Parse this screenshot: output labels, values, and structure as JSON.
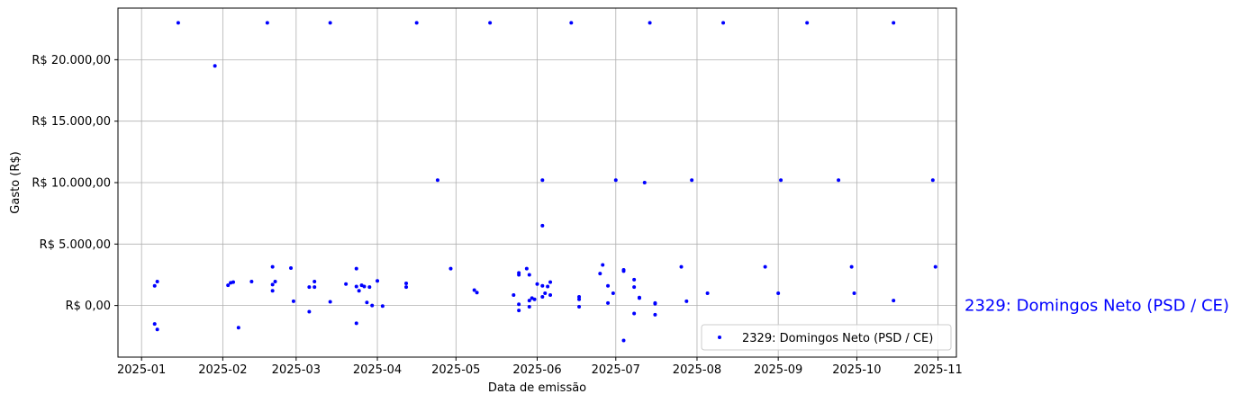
{
  "chart_data": {
    "type": "scatter",
    "title": "",
    "xlabel": "Data de emissão",
    "ylabel": "Gasto (R$)",
    "x_axis_type": "date",
    "xlim": [
      "2024-12-23",
      "2025-11-08"
    ],
    "ylim": [
      -4200,
      24200
    ],
    "x_ticks": [
      "2025-01-01",
      "2025-02-01",
      "2025-03-01",
      "2025-04-01",
      "2025-05-01",
      "2025-06-01",
      "2025-07-01",
      "2025-08-01",
      "2025-09-01",
      "2025-10-01",
      "2025-11-01"
    ],
    "x_tick_labels": [
      "2025-01",
      "2025-02",
      "2025-03",
      "2025-04",
      "2025-05",
      "2025-06",
      "2025-07",
      "2025-08",
      "2025-09",
      "2025-10",
      "2025-11"
    ],
    "y_ticks": [
      0,
      5000,
      10000,
      15000,
      20000
    ],
    "y_tick_labels": [
      "R$ 0,00",
      "R$ 5.000,00",
      "R$ 10.000,00",
      "R$ 15.000,00",
      "R$ 20.000,00"
    ],
    "grid": true,
    "legend": {
      "position": "lower right",
      "entries": [
        "2329: Domingos Neto (PSD / CE)"
      ]
    },
    "annotation": "2329: Domingos Neto (PSD / CE)",
    "series": [
      {
        "name": "2329: Domingos Neto (PSD / CE)",
        "color": "#0000ff",
        "marker": "circle",
        "points": [
          {
            "x": "2025-01-06",
            "y": 1600
          },
          {
            "x": "2025-01-07",
            "y": 1950
          },
          {
            "x": "2025-01-06",
            "y": -1500
          },
          {
            "x": "2025-01-07",
            "y": -1950
          },
          {
            "x": "2025-01-15",
            "y": 23000
          },
          {
            "x": "2025-01-29",
            "y": 19500
          },
          {
            "x": "2025-02-03",
            "y": 1650
          },
          {
            "x": "2025-02-04",
            "y": 1850
          },
          {
            "x": "2025-02-05",
            "y": 1900
          },
          {
            "x": "2025-02-07",
            "y": -1800
          },
          {
            "x": "2025-02-12",
            "y": 1950
          },
          {
            "x": "2025-02-18",
            "y": 23000
          },
          {
            "x": "2025-02-20",
            "y": 3150
          },
          {
            "x": "2025-02-20",
            "y": 1700
          },
          {
            "x": "2025-02-21",
            "y": 1950
          },
          {
            "x": "2025-02-20",
            "y": 1200
          },
          {
            "x": "2025-02-27",
            "y": 3050
          },
          {
            "x": "2025-02-28",
            "y": 350
          },
          {
            "x": "2025-03-06",
            "y": 1500
          },
          {
            "x": "2025-03-06",
            "y": -500
          },
          {
            "x": "2025-03-08",
            "y": 1950
          },
          {
            "x": "2025-03-08",
            "y": 1500
          },
          {
            "x": "2025-03-14",
            "y": 23000
          },
          {
            "x": "2025-03-14",
            "y": 300
          },
          {
            "x": "2025-03-20",
            "y": 1750
          },
          {
            "x": "2025-03-24",
            "y": 3000
          },
          {
            "x": "2025-03-24",
            "y": 1550
          },
          {
            "x": "2025-03-25",
            "y": 1200
          },
          {
            "x": "2025-03-24",
            "y": -1450
          },
          {
            "x": "2025-03-26",
            "y": 1650
          },
          {
            "x": "2025-03-27",
            "y": 1550
          },
          {
            "x": "2025-03-28",
            "y": 250
          },
          {
            "x": "2025-03-29",
            "y": 1500
          },
          {
            "x": "2025-03-30",
            "y": 0
          },
          {
            "x": "2025-04-01",
            "y": 2000
          },
          {
            "x": "2025-04-03",
            "y": -50
          },
          {
            "x": "2025-04-12",
            "y": 1800
          },
          {
            "x": "2025-04-12",
            "y": 1500
          },
          {
            "x": "2025-04-16",
            "y": 23000
          },
          {
            "x": "2025-04-24",
            "y": 10200
          },
          {
            "x": "2025-04-29",
            "y": 3000
          },
          {
            "x": "2025-05-08",
            "y": 1250
          },
          {
            "x": "2025-05-09",
            "y": 1050
          },
          {
            "x": "2025-05-14",
            "y": 23000
          },
          {
            "x": "2025-05-23",
            "y": 850
          },
          {
            "x": "2025-05-25",
            "y": 2500
          },
          {
            "x": "2025-05-25",
            "y": 2650
          },
          {
            "x": "2025-05-25",
            "y": 100
          },
          {
            "x": "2025-05-25",
            "y": -400
          },
          {
            "x": "2025-05-28",
            "y": 3000
          },
          {
            "x": "2025-05-29",
            "y": 2500
          },
          {
            "x": "2025-05-29",
            "y": 400
          },
          {
            "x": "2025-05-29",
            "y": -100
          },
          {
            "x": "2025-05-30",
            "y": 600
          },
          {
            "x": "2025-05-31",
            "y": 500
          },
          {
            "x": "2025-06-01",
            "y": 1750
          },
          {
            "x": "2025-06-03",
            "y": 10200
          },
          {
            "x": "2025-06-03",
            "y": 6500
          },
          {
            "x": "2025-06-03",
            "y": 1600
          },
          {
            "x": "2025-06-03",
            "y": 700
          },
          {
            "x": "2025-06-04",
            "y": 1000
          },
          {
            "x": "2025-06-05",
            "y": 1550
          },
          {
            "x": "2025-06-06",
            "y": 1900
          },
          {
            "x": "2025-06-06",
            "y": 850
          },
          {
            "x": "2025-06-14",
            "y": 23000
          },
          {
            "x": "2025-06-17",
            "y": 700
          },
          {
            "x": "2025-06-17",
            "y": 500
          },
          {
            "x": "2025-06-17",
            "y": -100
          },
          {
            "x": "2025-06-25",
            "y": 2600
          },
          {
            "x": "2025-06-26",
            "y": 3300
          },
          {
            "x": "2025-06-28",
            "y": 1600
          },
          {
            "x": "2025-06-28",
            "y": 200
          },
          {
            "x": "2025-06-30",
            "y": 1000
          },
          {
            "x": "2025-07-01",
            "y": 10200
          },
          {
            "x": "2025-07-04",
            "y": 2900
          },
          {
            "x": "2025-07-04",
            "y": 2800
          },
          {
            "x": "2025-07-04",
            "y": -2850
          },
          {
            "x": "2025-07-08",
            "y": 2100
          },
          {
            "x": "2025-07-08",
            "y": 1500
          },
          {
            "x": "2025-07-08",
            "y": -650
          },
          {
            "x": "2025-07-10",
            "y": 650
          },
          {
            "x": "2025-07-10",
            "y": 600
          },
          {
            "x": "2025-07-12",
            "y": 10000
          },
          {
            "x": "2025-07-14",
            "y": 23000
          },
          {
            "x": "2025-07-16",
            "y": 200
          },
          {
            "x": "2025-07-16",
            "y": 150
          },
          {
            "x": "2025-07-16",
            "y": -750
          },
          {
            "x": "2025-07-26",
            "y": 3150
          },
          {
            "x": "2025-07-28",
            "y": 350
          },
          {
            "x": "2025-07-30",
            "y": 10200
          },
          {
            "x": "2025-08-05",
            "y": 1000
          },
          {
            "x": "2025-08-11",
            "y": 23000
          },
          {
            "x": "2025-08-27",
            "y": 3150
          },
          {
            "x": "2025-09-01",
            "y": 1000
          },
          {
            "x": "2025-09-02",
            "y": 10200
          },
          {
            "x": "2025-09-12",
            "y": 23000
          },
          {
            "x": "2025-09-24",
            "y": 10200
          },
          {
            "x": "2025-09-29",
            "y": 3150
          },
          {
            "x": "2025-09-30",
            "y": 1000
          },
          {
            "x": "2025-10-15",
            "y": 23000
          },
          {
            "x": "2025-10-15",
            "y": 400
          },
          {
            "x": "2025-10-30",
            "y": 10200
          },
          {
            "x": "2025-10-31",
            "y": 3150
          }
        ]
      }
    ]
  }
}
